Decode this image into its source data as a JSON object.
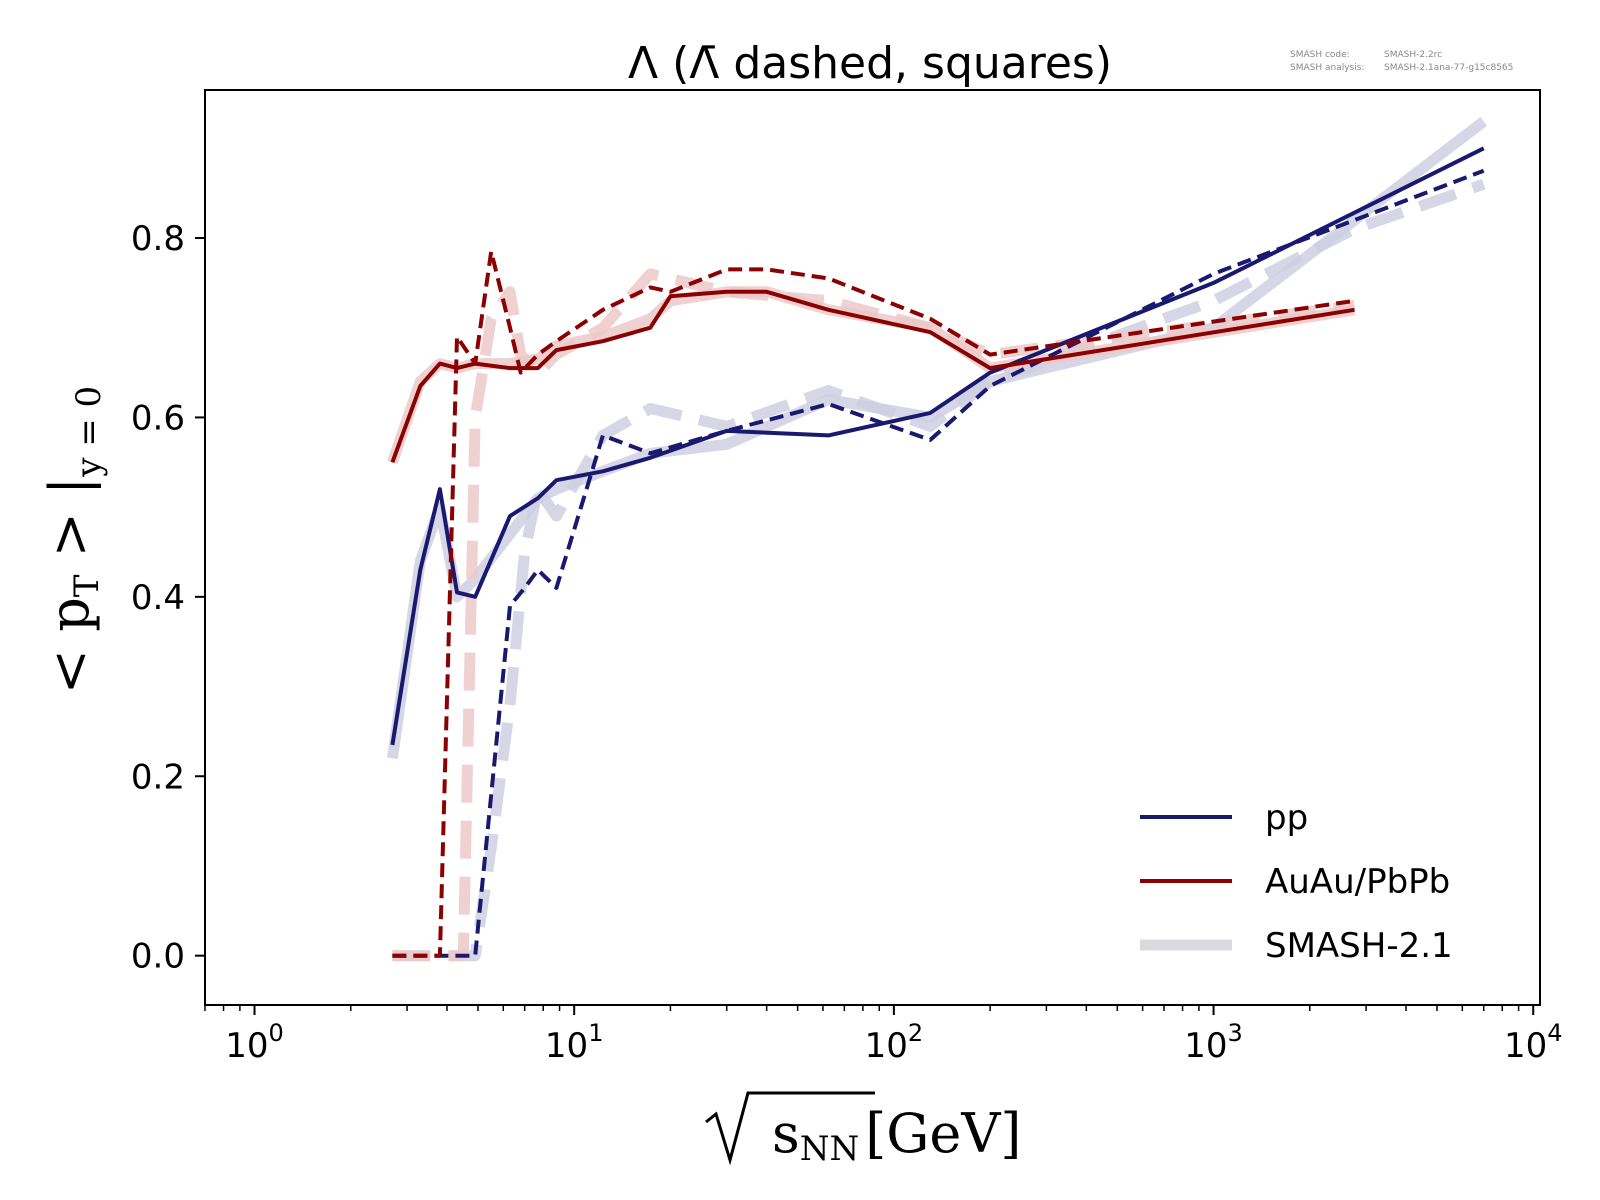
{
  "chart_data": {
    "type": "line",
    "title": "Λ (Λ̄ dashed, squares)",
    "version_info": {
      "line1_label": "SMASH code:",
      "line1_value": "SMASH-2.2rc",
      "line2_label": "SMASH analysis:",
      "line2_value": "SMASH-2.1ana-77-g15c8565"
    },
    "xlabel": "√sNN [GeV]",
    "ylabel": "< pT > |y=0",
    "xscale": "log",
    "xlim": [
      0.7,
      10500
    ],
    "ylim": [
      -0.055,
      0.965
    ],
    "x_ticks": [
      {
        "value": 1,
        "base": "10",
        "exp": "0"
      },
      {
        "value": 10,
        "base": "10",
        "exp": "1"
      },
      {
        "value": 100,
        "base": "10",
        "exp": "2"
      },
      {
        "value": 1000,
        "base": "10",
        "exp": "3"
      },
      {
        "value": 10000,
        "base": "10",
        "exp": "4"
      }
    ],
    "y_ticks": [
      {
        "value": 0.0,
        "label": "0.0"
      },
      {
        "value": 0.2,
        "label": "0.2"
      },
      {
        "value": 0.4,
        "label": "0.4"
      },
      {
        "value": 0.6,
        "label": "0.6"
      },
      {
        "value": 0.8,
        "label": "0.8"
      }
    ],
    "grid": false,
    "legend": {
      "position": "lower-right",
      "entries": [
        {
          "label": "pp",
          "color": "#191970",
          "style": "solid"
        },
        {
          "label": "AuAu/PbPb",
          "color": "#8b0000",
          "style": "solid"
        },
        {
          "label": "SMASH-2.1",
          "color": "#d9d9e0",
          "style": "thick"
        }
      ]
    },
    "series": [
      {
        "group": "reference-pp-lambda",
        "color": "#cfcfe2",
        "style": "thick-solid",
        "x": [
          2.7,
          3.3,
          3.8,
          4.3,
          4.9,
          6.3,
          7.7,
          8.8,
          12.3,
          17.3,
          30,
          62.4,
          130,
          200,
          1000,
          2760,
          7000
        ],
        "y": [
          0.22,
          0.44,
          0.5,
          0.4,
          0.42,
          0.47,
          0.51,
          0.52,
          0.54,
          0.56,
          0.57,
          0.62,
          0.6,
          0.64,
          0.7,
          0.82,
          0.93
        ]
      },
      {
        "group": "reference-pp-antilambda",
        "color": "#cfcfe2",
        "style": "thick-dashed",
        "x": [
          2.7,
          3.8,
          4.9,
          5.5,
          6.3,
          7.0,
          7.7,
          8.8,
          12.3,
          17.3,
          30,
          62.4,
          130,
          200,
          1000,
          2760,
          7000
        ],
        "y": [
          0.0,
          0.0,
          0.0,
          0.12,
          0.28,
          0.45,
          0.52,
          0.49,
          0.58,
          0.61,
          0.59,
          0.63,
          0.59,
          0.64,
          0.73,
          0.81,
          0.86
        ]
      },
      {
        "group": "reference-AA-lambda",
        "color": "#ecc9c9",
        "style": "thick-solid",
        "x": [
          2.7,
          3.3,
          3.8,
          4.3,
          4.9,
          6.3,
          7.7,
          8.8,
          12.3,
          17.3,
          20,
          30,
          40,
          62.4,
          130,
          200,
          2760
        ],
        "y": [
          0.55,
          0.64,
          0.66,
          0.655,
          0.66,
          0.66,
          0.665,
          0.68,
          0.69,
          0.71,
          0.73,
          0.74,
          0.74,
          0.72,
          0.7,
          0.655,
          0.72
        ]
      },
      {
        "group": "reference-AA-antilambda",
        "color": "#ecc9c9",
        "style": "thick-dashed",
        "x": [
          2.7,
          3.8,
          4.5,
          4.9,
          5.5,
          6.3,
          6.8,
          7.7,
          8.8,
          12.3,
          17.3,
          30,
          62.4,
          130,
          200,
          2760
        ],
        "y": [
          0.0,
          0.0,
          0.0,
          0.6,
          0.71,
          0.74,
          0.67,
          0.65,
          0.67,
          0.7,
          0.76,
          0.74,
          0.73,
          0.7,
          0.67,
          0.725
        ]
      },
      {
        "group": "pp-lambda",
        "color": "#191970",
        "style": "solid",
        "x": [
          2.7,
          3.3,
          3.8,
          4.3,
          4.9,
          6.3,
          7.7,
          8.8,
          12.3,
          17.3,
          30,
          62.4,
          130,
          200,
          1000,
          7000
        ],
        "y": [
          0.235,
          0.43,
          0.52,
          0.405,
          0.4,
          0.49,
          0.51,
          0.53,
          0.54,
          0.555,
          0.585,
          0.58,
          0.605,
          0.65,
          0.75,
          0.9
        ]
      },
      {
        "group": "pp-antilambda",
        "color": "#191970",
        "style": "dashed",
        "x": [
          2.7,
          3.8,
          4.3,
          4.9,
          6.3,
          7.0,
          7.7,
          8.8,
          12.3,
          17.3,
          30,
          62.4,
          130,
          200,
          1000,
          7000
        ],
        "y": [
          0.0,
          0.0,
          0.0,
          0.0,
          0.39,
          0.41,
          0.43,
          0.41,
          0.58,
          0.56,
          0.585,
          0.615,
          0.575,
          0.635,
          0.76,
          0.875
        ]
      },
      {
        "group": "AA-lambda",
        "color": "#8b0000",
        "style": "solid",
        "x": [
          2.7,
          3.3,
          3.8,
          4.3,
          4.9,
          6.3,
          7.7,
          8.8,
          12.3,
          17.3,
          20,
          30,
          40,
          62.4,
          130,
          200,
          2760
        ],
        "y": [
          0.55,
          0.635,
          0.66,
          0.655,
          0.66,
          0.655,
          0.655,
          0.675,
          0.685,
          0.7,
          0.735,
          0.74,
          0.74,
          0.72,
          0.695,
          0.655,
          0.72
        ]
      },
      {
        "group": "AA-antilambda",
        "color": "#8b0000",
        "style": "dashed",
        "x": [
          2.7,
          3.8,
          4.3,
          4.9,
          5.5,
          6.3,
          6.8,
          7.7,
          8.8,
          12.3,
          17.3,
          20,
          30,
          40,
          62.4,
          130,
          200,
          2760
        ],
        "y": [
          0.0,
          0.0,
          0.69,
          0.66,
          0.785,
          0.7,
          0.65,
          0.67,
          0.685,
          0.72,
          0.745,
          0.74,
          0.765,
          0.765,
          0.755,
          0.71,
          0.67,
          0.73
        ]
      }
    ]
  }
}
